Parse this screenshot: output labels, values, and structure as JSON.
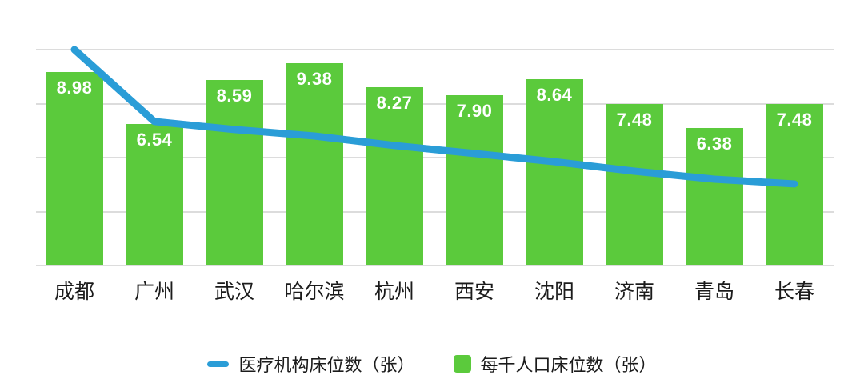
{
  "chart_data": {
    "type": "bar",
    "title": "",
    "xlabel": "",
    "ylabel": "",
    "categories": [
      "成都",
      "广州",
      "武汉",
      "哈尔滨",
      "杭州",
      "西安",
      "沈阳",
      "济南",
      "青岛",
      "长春"
    ],
    "series": [
      {
        "name": "每千人口床位数（张）",
        "type": "bar",
        "color": "#5bca3c",
        "values": [
          8.98,
          6.54,
          8.59,
          9.38,
          8.27,
          7.9,
          8.64,
          7.48,
          6.38,
          7.48
        ],
        "value_labels": [
          "8.98",
          "6.54",
          "8.59",
          "9.38",
          "8.27",
          "7.90",
          "8.64",
          "7.48",
          "6.38",
          "7.48"
        ],
        "label_color": "#ffffff"
      },
      {
        "name": "医疗机构床位数（张）",
        "type": "line",
        "color": "#2a9dd7",
        "values": [
          10.0,
          6.67,
          6.3,
          6.0,
          5.56,
          5.19,
          4.81,
          4.37,
          4.0,
          3.78
        ],
        "values_note": "no data labels shown on the line; values estimated from plotted position against the unlabeled 0-10 left scale"
      }
    ],
    "ylim": [
      0,
      10
    ],
    "gridline_interval": 2.5,
    "grid": true,
    "gridline_color": "#dcdcdc",
    "y_tick_labels_visible": false,
    "legend_position": "bottom"
  },
  "legend": {
    "items": [
      {
        "label": "医疗机构床位数（张）",
        "marker": "line-dash",
        "color": "#2a9dd7"
      },
      {
        "label": "每千人口床位数（张）",
        "marker": "square",
        "color": "#5bca3c"
      }
    ]
  }
}
